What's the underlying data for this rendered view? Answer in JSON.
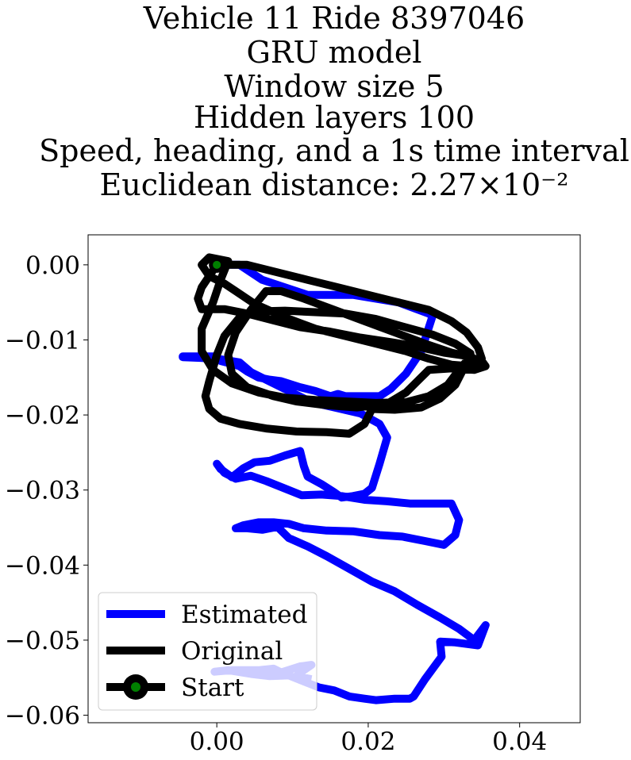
{
  "title_lines": [
    "Vehicle 11 Ride 8397046",
    "GRU model",
    "Window size 5",
    "Hidden layers 100",
    "Speed, heading, and a 1s time interval",
    "Euclidean distance: 2.27×10⁻²"
  ],
  "chart_data": {
    "type": "line",
    "title": "Vehicle 11 Ride 8397046 / GRU model / Window size 5 / Hidden layers 100 / Speed, heading, and a 1s time interval / Euclidean distance: 2.27×10⁻²",
    "xlabel": "",
    "ylabel": "",
    "xlim": [
      -0.017,
      0.048
    ],
    "ylim": [
      -0.061,
      0.004
    ],
    "xticks": [
      0.0,
      0.02,
      0.04
    ],
    "xtick_labels": [
      "0.00",
      "0.02",
      "0.04"
    ],
    "yticks": [
      0.0,
      -0.01,
      -0.02,
      -0.03,
      -0.04,
      -0.05,
      -0.06
    ],
    "ytick_labels": [
      "0.00",
      "−0.01",
      "−0.02",
      "−0.03",
      "−0.04",
      "−0.05",
      "−0.06"
    ],
    "grid": false,
    "legend_position": "lower-left",
    "series": [
      {
        "name": "Estimated",
        "color": "#0000ff",
        "points": [
          [
            0.0,
            0.0
          ],
          [
            0.003,
            0.0
          ],
          [
            0.006,
            -0.002
          ],
          [
            0.012,
            -0.004
          ],
          [
            0.018,
            -0.004
          ],
          [
            0.024,
            -0.005
          ],
          [
            0.028,
            -0.0065
          ],
          [
            0.0285,
            -0.0068
          ],
          [
            0.027,
            -0.0115
          ],
          [
            0.025,
            -0.0145
          ],
          [
            0.023,
            -0.0165
          ],
          [
            0.0215,
            -0.0175
          ],
          [
            0.02,
            -0.0175
          ],
          [
            0.017,
            -0.0175
          ],
          [
            0.016,
            -0.0172
          ],
          [
            0.015,
            -0.0175
          ],
          [
            0.013,
            -0.0168
          ],
          [
            0.011,
            -0.0163
          ],
          [
            0.0085,
            -0.0155
          ],
          [
            0.007,
            -0.0153
          ],
          [
            0.0055,
            -0.015
          ],
          [
            0.004,
            -0.0142
          ],
          [
            0.003,
            -0.0135
          ],
          [
            0.002,
            -0.0132
          ],
          [
            0.0005,
            -0.0128
          ],
          [
            -0.0002,
            -0.0122
          ],
          [
            -0.002,
            -0.0122
          ],
          [
            -0.0045,
            -0.0122
          ],
          [
            -0.0045,
            -0.0123
          ],
          [
            0.0,
            -0.0125
          ],
          [
            0.003,
            -0.013
          ],
          [
            0.0045,
            -0.0143
          ],
          [
            0.0065,
            -0.0153
          ],
          [
            0.0095,
            -0.0168
          ],
          [
            0.0125,
            -0.0183
          ],
          [
            0.016,
            -0.0191
          ],
          [
            0.019,
            -0.0198
          ],
          [
            0.0215,
            -0.0212
          ],
          [
            0.0225,
            -0.023
          ],
          [
            0.0215,
            -0.0265
          ],
          [
            0.0205,
            -0.0297
          ],
          [
            0.0195,
            -0.0305
          ],
          [
            0.018,
            -0.0308
          ],
          [
            0.0165,
            -0.031
          ],
          [
            0.0155,
            -0.0303
          ],
          [
            0.0138,
            -0.0292
          ],
          [
            0.012,
            -0.0282
          ],
          [
            0.0115,
            -0.0268
          ],
          [
            0.011,
            -0.0248
          ],
          [
            0.009,
            -0.0254
          ],
          [
            0.007,
            -0.0261
          ],
          [
            0.005,
            -0.0263
          ],
          [
            0.0035,
            -0.0271
          ],
          [
            0.002,
            -0.0283
          ],
          [
            0.0005,
            -0.0272
          ],
          [
            0.0,
            -0.0265
          ],
          [
            0.001,
            -0.0277
          ],
          [
            0.0025,
            -0.0285
          ],
          [
            0.0045,
            -0.0281
          ],
          [
            0.0065,
            -0.0288
          ],
          [
            0.009,
            -0.0298
          ],
          [
            0.0112,
            -0.0307
          ],
          [
            0.0138,
            -0.0306
          ],
          [
            0.0165,
            -0.0308
          ],
          [
            0.0195,
            -0.0313
          ],
          [
            0.0225,
            -0.0315
          ],
          [
            0.0255,
            -0.0318
          ],
          [
            0.0285,
            -0.0318
          ],
          [
            0.031,
            -0.0318
          ],
          [
            0.032,
            -0.034
          ],
          [
            0.0315,
            -0.036
          ],
          [
            0.03,
            -0.0373
          ],
          [
            0.0275,
            -0.0368
          ],
          [
            0.0245,
            -0.0362
          ],
          [
            0.0215,
            -0.036
          ],
          [
            0.018,
            -0.0355
          ],
          [
            0.0145,
            -0.0354
          ],
          [
            0.0115,
            -0.0351
          ],
          [
            0.0095,
            -0.0345
          ],
          [
            0.0075,
            -0.0343
          ],
          [
            0.0055,
            -0.0343
          ],
          [
            0.0035,
            -0.0347
          ],
          [
            0.0025,
            -0.0351
          ],
          [
            0.004,
            -0.0351
          ],
          [
            0.006,
            -0.0353
          ],
          [
            0.008,
            -0.0349
          ],
          [
            0.0095,
            -0.0364
          ],
          [
            0.012,
            -0.0375
          ],
          [
            0.0145,
            -0.0388
          ],
          [
            0.0175,
            -0.0405
          ],
          [
            0.0205,
            -0.0422
          ],
          [
            0.0235,
            -0.0435
          ],
          [
            0.0265,
            -0.0453
          ],
          [
            0.0295,
            -0.047
          ],
          [
            0.032,
            -0.0485
          ],
          [
            0.034,
            -0.05
          ],
          [
            0.0355,
            -0.048
          ],
          [
            0.0345,
            -0.0507
          ],
          [
            0.0315,
            -0.0503
          ],
          [
            0.0295,
            -0.0502
          ],
          [
            0.0297,
            -0.0522
          ],
          [
            0.0275,
            -0.0552
          ],
          [
            0.026,
            -0.0575
          ],
          [
            0.0255,
            -0.0578
          ],
          [
            0.0235,
            -0.0578
          ],
          [
            0.021,
            -0.058
          ],
          [
            0.0195,
            -0.0578
          ],
          [
            0.0175,
            -0.0575
          ],
          [
            0.0155,
            -0.0567
          ],
          [
            0.0135,
            -0.0563
          ],
          [
            0.0115,
            -0.0555
          ],
          [
            0.0095,
            -0.0547
          ],
          [
            0.007,
            -0.0548
          ],
          [
            0.0045,
            -0.0545
          ],
          [
            0.0015,
            -0.054
          ],
          [
            -0.0003,
            -0.0542
          ],
          [
            0.002,
            -0.054
          ],
          [
            0.0055,
            -0.054
          ],
          [
            0.0075,
            -0.0538
          ],
          [
            0.0085,
            -0.0543
          ],
          [
            0.011,
            -0.0535
          ],
          [
            0.0125,
            -0.0533
          ],
          [
            0.0115,
            -0.054
          ],
          [
            0.0105,
            -0.0548
          ],
          [
            0.0125,
            -0.0552
          ]
        ]
      },
      {
        "name": "Original",
        "color": "#000000",
        "points": [
          [
            0.0,
            0.0
          ],
          [
            0.004,
            0.0
          ],
          [
            0.008,
            -0.001
          ],
          [
            0.012,
            -0.002
          ],
          [
            0.016,
            -0.003
          ],
          [
            0.02,
            -0.004
          ],
          [
            0.024,
            -0.005
          ],
          [
            0.028,
            -0.006
          ],
          [
            0.031,
            -0.0075
          ],
          [
            0.033,
            -0.009
          ],
          [
            0.0345,
            -0.011
          ],
          [
            0.035,
            -0.0125
          ],
          [
            0.0335,
            -0.0135
          ],
          [
            0.031,
            -0.0133
          ],
          [
            0.028,
            -0.0125
          ],
          [
            0.025,
            -0.0115
          ],
          [
            0.021,
            -0.0105
          ],
          [
            0.017,
            -0.0095
          ],
          [
            0.013,
            -0.0085
          ],
          [
            0.009,
            -0.007
          ],
          [
            0.005,
            -0.0052
          ],
          [
            0.0025,
            -0.0035
          ],
          [
            0.001,
            -0.0025
          ],
          [
            -0.001,
            -0.0015
          ],
          [
            -0.002,
            0.0
          ],
          [
            -0.001,
            0.001
          ],
          [
            0.0015,
            0.0005
          ],
          [
            0.0005,
            -0.002
          ],
          [
            -0.0005,
            -0.005
          ],
          [
            -0.002,
            -0.0085
          ],
          [
            -0.002,
            -0.0115
          ],
          [
            -0.0005,
            -0.014
          ],
          [
            0.002,
            -0.0158
          ],
          [
            0.0055,
            -0.017
          ],
          [
            0.009,
            -0.0177
          ],
          [
            0.013,
            -0.018
          ],
          [
            0.017,
            -0.0182
          ],
          [
            0.021,
            -0.0184
          ],
          [
            0.025,
            -0.0183
          ],
          [
            0.028,
            -0.0175
          ],
          [
            0.0305,
            -0.016
          ],
          [
            0.032,
            -0.014
          ],
          [
            0.0335,
            -0.0122
          ],
          [
            0.034,
            -0.0125
          ],
          [
            0.035,
            -0.0128
          ],
          [
            0.0355,
            -0.0135
          ],
          [
            0.034,
            -0.014
          ],
          [
            0.031,
            -0.0138
          ],
          [
            0.028,
            -0.014
          ],
          [
            0.0265,
            -0.0155
          ],
          [
            0.025,
            -0.017
          ],
          [
            0.0225,
            -0.0185
          ],
          [
            0.0185,
            -0.019
          ],
          [
            0.0145,
            -0.0187
          ],
          [
            0.0105,
            -0.0182
          ],
          [
            0.0075,
            -0.0175
          ],
          [
            0.004,
            -0.0163
          ],
          [
            0.002,
            -0.0145
          ],
          [
            0.0015,
            -0.012
          ],
          [
            0.0025,
            -0.009
          ],
          [
            0.0045,
            -0.006
          ],
          [
            0.0065,
            -0.0035
          ],
          [
            0.0085,
            -0.0035
          ],
          [
            0.0115,
            -0.0045
          ],
          [
            0.0155,
            -0.006
          ],
          [
            0.0195,
            -0.0075
          ],
          [
            0.0235,
            -0.009
          ],
          [
            0.0275,
            -0.0105
          ],
          [
            0.031,
            -0.0117
          ],
          [
            0.0335,
            -0.0123
          ],
          [
            0.034,
            -0.0125
          ],
          [
            0.0325,
            -0.014
          ],
          [
            0.0315,
            -0.016
          ],
          [
            0.0295,
            -0.0178
          ],
          [
            0.027,
            -0.019
          ],
          [
            0.0235,
            -0.0193
          ],
          [
            0.0205,
            -0.0192
          ],
          [
            0.0195,
            -0.0212
          ],
          [
            0.0175,
            -0.0225
          ],
          [
            0.0145,
            -0.0223
          ],
          [
            0.0105,
            -0.0222
          ],
          [
            0.0065,
            -0.0218
          ],
          [
            0.003,
            -0.0212
          ],
          [
            0.0005,
            -0.0205
          ],
          [
            -0.001,
            -0.0192
          ],
          [
            -0.0015,
            -0.0175
          ],
          [
            -0.001,
            -0.0155
          ],
          [
            0.0,
            -0.012
          ],
          [
            0.001,
            -0.0095
          ],
          [
            0.003,
            -0.007
          ],
          [
            0.0055,
            -0.0062
          ],
          [
            0.009,
            -0.0061
          ],
          [
            0.013,
            -0.0063
          ],
          [
            0.017,
            -0.0065
          ],
          [
            0.021,
            -0.0072
          ],
          [
            0.0245,
            -0.0082
          ],
          [
            0.0285,
            -0.0093
          ],
          [
            0.0315,
            -0.0105
          ],
          [
            0.0335,
            -0.0118
          ],
          [
            0.0335,
            -0.0122
          ],
          [
            0.03,
            -0.0117
          ],
          [
            0.0265,
            -0.0109
          ],
          [
            0.023,
            -0.0103
          ],
          [
            0.019,
            -0.0097
          ],
          [
            0.015,
            -0.0089
          ],
          [
            0.011,
            -0.0083
          ],
          [
            0.0075,
            -0.0074
          ],
          [
            0.004,
            -0.0065
          ],
          [
            0.001,
            -0.0059
          ],
          [
            -0.002,
            -0.0059
          ],
          [
            -0.0025,
            -0.0045
          ],
          [
            -0.002,
            -0.003
          ],
          [
            -0.001,
            -0.0015
          ],
          [
            0.0,
            0.0
          ]
        ]
      }
    ],
    "start_marker": {
      "x": 0.0,
      "y": 0.0,
      "label": "Start",
      "edge_color": "#000000",
      "face_color": "#008000"
    },
    "legend_entries": [
      "Estimated",
      "Original",
      "Start"
    ]
  }
}
